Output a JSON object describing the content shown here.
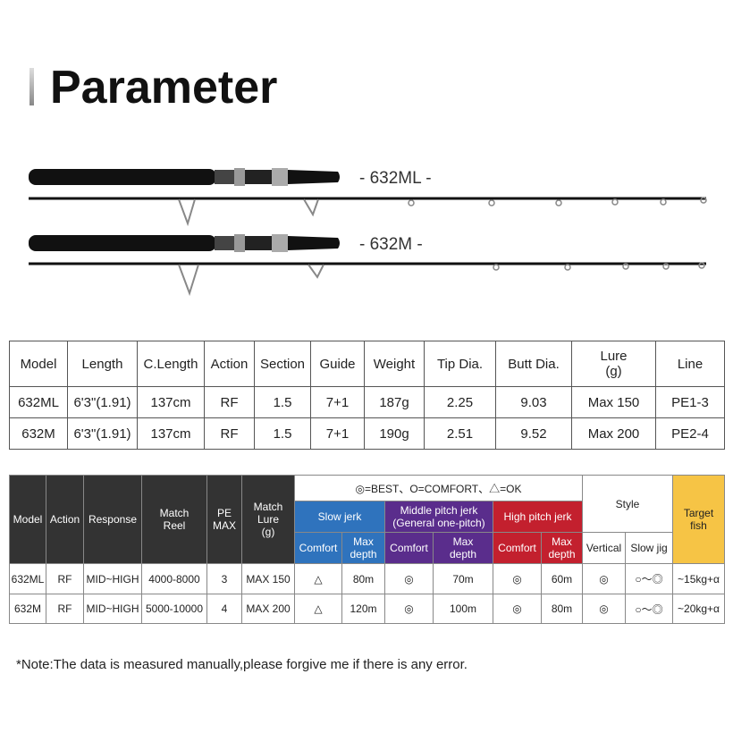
{
  "header": {
    "title": "Parameter"
  },
  "rods": [
    "- 632ML -",
    "- 632M -"
  ],
  "spec_table": {
    "headers": [
      "Model",
      "Length",
      "C.Length",
      "Action",
      "Section",
      "Guide",
      "Weight",
      "Tip Dia.",
      "Butt Dia.",
      "Lure\n(g)",
      "Line"
    ],
    "rows": [
      [
        "632ML",
        "6'3\"(1.91)",
        "137cm",
        "RF",
        "1.5",
        "7+1",
        "187g",
        "2.25",
        "9.03",
        "Max 150",
        "PE1-3"
      ],
      [
        "632M",
        "6'3\"(1.91)",
        "137cm",
        "RF",
        "1.5",
        "7+1",
        "190g",
        "2.51",
        "9.52",
        "Max 200",
        "PE2-4"
      ]
    ]
  },
  "style_table": {
    "columns": [
      "Model",
      "Action",
      "Response",
      "Match\nReel",
      "PE\nMAX",
      "Match\nLure\n(g)"
    ],
    "legend": "◎=BEST、O=COMFORT、△=OK",
    "jerks": [
      {
        "name": "Slow jerk",
        "sub": [
          "Comfort",
          "Max\ndepth"
        ]
      },
      {
        "name": "Middle pitch jerk\n(General one-pitch)",
        "sub": [
          "Comfort",
          "Max\ndepth"
        ]
      },
      {
        "name": "High pitch jerk",
        "sub": [
          "Comfort",
          "Max\ndepth"
        ]
      }
    ],
    "style": {
      "name": "Style",
      "sub": [
        "Vertical",
        "Slow jig"
      ]
    },
    "target": "Target\nfish",
    "rows": [
      [
        "632ML",
        "RF",
        "MID~HIGH",
        "4000-8000",
        "3",
        "MAX 150",
        "△",
        "80m",
        "◎",
        "70m",
        "◎",
        "60m",
        "◎",
        "○〜◎",
        "~15kg+α"
      ],
      [
        "632M",
        "RF",
        "MID~HIGH",
        "5000-10000",
        "4",
        "MAX 200",
        "△",
        "120m",
        "◎",
        "100m",
        "◎",
        "80m",
        "◎",
        "○〜◎",
        "~20kg+α"
      ]
    ]
  },
  "note": "*Note:The data is measured manually,please forgive me if there is any error."
}
